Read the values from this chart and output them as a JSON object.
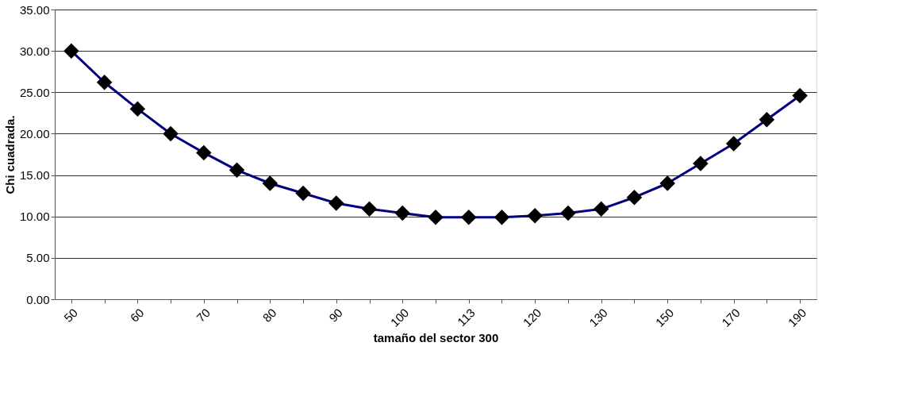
{
  "chart_data": {
    "type": "line",
    "xlabel": "tamaño del sector 300",
    "ylabel": "Chi cuadrada.",
    "categories": [
      "50",
      null,
      "60",
      null,
      "70",
      null,
      "80",
      null,
      "90",
      null,
      "100",
      null,
      "113",
      null,
      "120",
      null,
      "130",
      null,
      "150",
      null,
      "170",
      null,
      "190"
    ],
    "series": [
      {
        "color": "#000080",
        "values": [
          30.0,
          26.2,
          23.0,
          20.0,
          17.7,
          15.6,
          14.0,
          12.8,
          11.6,
          10.9,
          10.4,
          9.9,
          9.9,
          9.9,
          10.1,
          10.4,
          10.9,
          12.3,
          14.0,
          16.4,
          18.8,
          21.7,
          24.6
        ]
      }
    ],
    "ylim": [
      0,
      35
    ],
    "yticks": [
      {
        "value": 0,
        "label": "0.00"
      },
      {
        "value": 5,
        "label": "5.00"
      },
      {
        "value": 10,
        "label": "10.00"
      },
      {
        "value": 15,
        "label": "15.00"
      },
      {
        "value": 20,
        "label": "20.00"
      },
      {
        "value": 25,
        "label": "25.00"
      },
      {
        "value": 30,
        "label": "30.00"
      },
      {
        "value": 35,
        "label": "35.00"
      }
    ],
    "grid": "y",
    "marker": "diamond",
    "line_style": "solid"
  }
}
